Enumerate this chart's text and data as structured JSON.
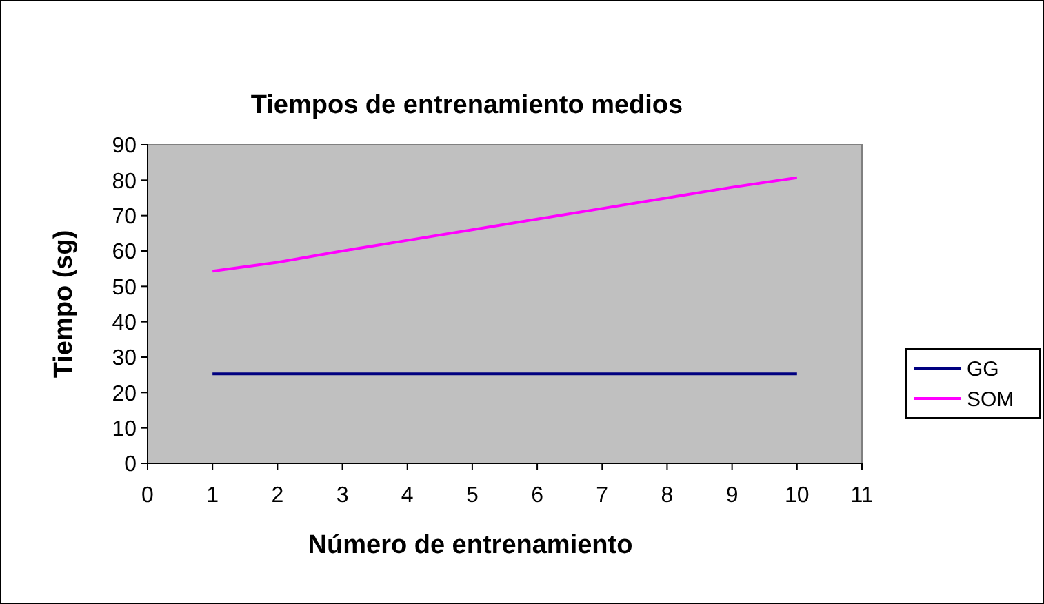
{
  "chart_data": {
    "type": "line",
    "title": "Tiempos de entrenamiento medios",
    "xlabel": "Número de entrenamiento",
    "ylabel": "Tiempo (sg)",
    "x": [
      1,
      2,
      3,
      4,
      5,
      6,
      7,
      8,
      9,
      10
    ],
    "series": [
      {
        "name": "GG",
        "color": "#000080",
        "values": [
          25.3,
          25.3,
          25.3,
          25.3,
          25.3,
          25.3,
          25.3,
          25.3,
          25.3,
          25.3
        ]
      },
      {
        "name": "SOM",
        "color": "#ff00ff",
        "values": [
          54.3,
          56.8,
          60,
          63,
          66,
          69,
          72,
          75,
          78,
          80.7
        ]
      }
    ],
    "xlim": [
      0,
      11
    ],
    "xticks": [
      0,
      1,
      2,
      3,
      4,
      5,
      6,
      7,
      8,
      9,
      10,
      11
    ],
    "ylim": [
      0,
      90
    ],
    "yticks": [
      0,
      10,
      20,
      30,
      40,
      50,
      60,
      70,
      80,
      90
    ],
    "grid": false,
    "legend": "right",
    "marker": "none",
    "line_style": "solid"
  }
}
